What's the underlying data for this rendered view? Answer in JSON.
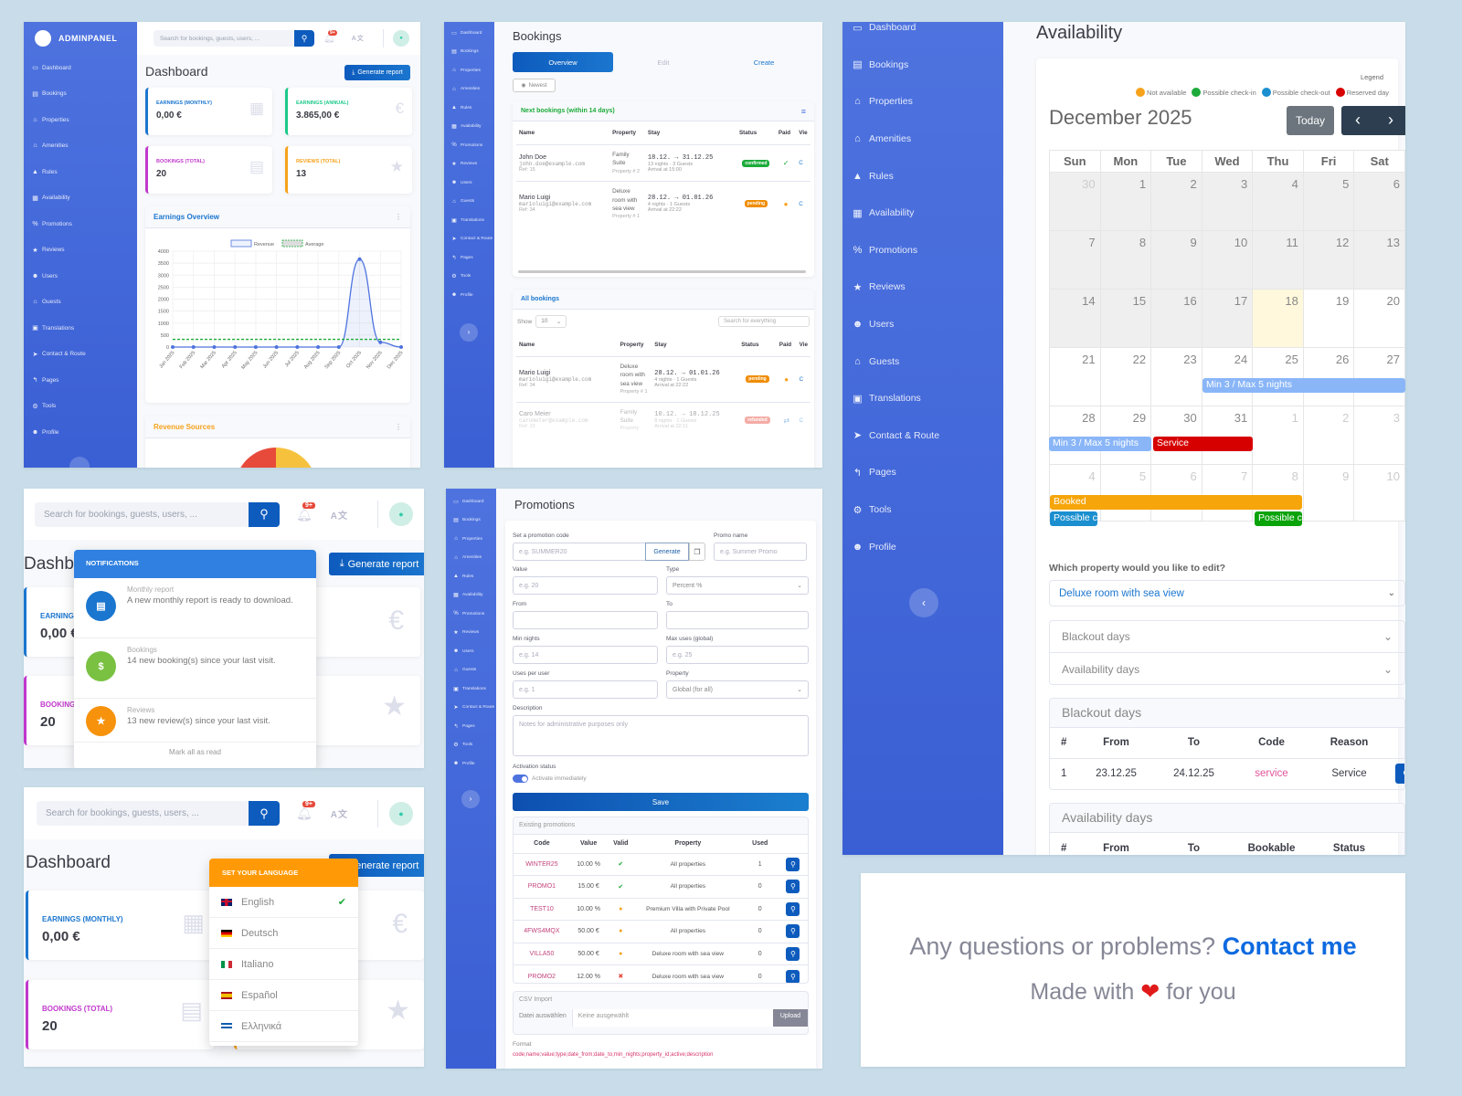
{
  "sidebar": {
    "brand": "ADMINPANEL",
    "items": [
      {
        "label": "Dashboard",
        "icon": "laptop-icon"
      },
      {
        "label": "Bookings",
        "icon": "clipboard-icon"
      },
      {
        "label": "Properties",
        "icon": "home-icon"
      },
      {
        "label": "Amenities",
        "icon": "house-heart-icon"
      },
      {
        "label": "Rules",
        "icon": "warning-icon"
      },
      {
        "label": "Availability",
        "icon": "calendar-icon"
      },
      {
        "label": "Promotions",
        "icon": "percent-icon"
      },
      {
        "label": "Reviews",
        "icon": "star-icon"
      },
      {
        "label": "Users",
        "icon": "users-icon"
      },
      {
        "label": "Guests",
        "icon": "guest-house-icon"
      },
      {
        "label": "Translations",
        "icon": "language-icon"
      },
      {
        "label": "Contact & Route",
        "icon": "location-arrow-icon"
      },
      {
        "label": "Pages",
        "icon": "pages-icon"
      },
      {
        "label": "Tools",
        "icon": "cogs-icon"
      },
      {
        "label": "Profile",
        "icon": "user-cog-icon"
      }
    ],
    "collapse_open": "›",
    "collapse_close": "‹"
  },
  "topbar": {
    "search_placeholder": "Search for bookings, guests, users, ...",
    "notif_badge": "9+",
    "lang_icon": "A文"
  },
  "dashboard": {
    "title": "Dashboard",
    "generate_report": "Generate report",
    "stats": [
      {
        "label": "Earnings (Monthly)",
        "value": "0,00 €",
        "color": "#1b76cf",
        "icon": "calendar-icon"
      },
      {
        "label": "Earnings (Annual)",
        "value": "3.865,00 €",
        "color": "#1cc88a",
        "icon": "euro-icon"
      },
      {
        "label": "Bookings (Total)",
        "value": "20",
        "color": "#c038cc",
        "icon": "clipboard-list-icon"
      },
      {
        "label": "Reviews (Total)",
        "value": "13",
        "color": "#f6a21b",
        "icon": "star-icon"
      }
    ],
    "earnings_title": "Earnings Overview",
    "revenue_sources_title": "Revenue Sources"
  },
  "chart_data": {
    "type": "line",
    "title": "Earnings Overview",
    "categories": [
      "Jan 2025",
      "Feb 2025",
      "Mar 2025",
      "Apr 2025",
      "May 2025",
      "Jun 2025",
      "Jul 2025",
      "Aug 2025",
      "Sep 2025",
      "Oct 2025",
      "Nov 2025",
      "Dec 2025"
    ],
    "series": [
      {
        "name": "Revenue",
        "values": [
          0,
          0,
          0,
          0,
          0,
          0,
          0,
          0,
          0,
          3665,
          200,
          0
        ]
      },
      {
        "name": "Average",
        "values": [
          322,
          322,
          322,
          322,
          322,
          322,
          322,
          322,
          322,
          322,
          322,
          322
        ]
      }
    ],
    "yticks": [
      0,
      500,
      1000,
      1500,
      2000,
      2500,
      3000,
      3500,
      4000
    ],
    "ylim": [
      0,
      4000
    ],
    "legend_position": "top",
    "grid": true
  },
  "bookings": {
    "title": "Bookings",
    "tabs": [
      "Overview",
      "Edit",
      "Create"
    ],
    "newest": "Newest",
    "next_title": "Next bookings (within 14 days)",
    "all_title": "All bookings",
    "columns": [
      "Name",
      "Property",
      "Stay",
      "Status",
      "Paid",
      "Vie"
    ],
    "show_label": "Show",
    "show_value": "10",
    "search_placeholder": "Search for everything",
    "next_rows": [
      {
        "name": "John Doe",
        "email": "john.doe@example.com",
        "ref": "Ref: 15",
        "property": "Family Suite",
        "prop_id": "Property # 2",
        "stay": "18.12. → 31.12.25",
        "nights": "13 nights · 3 Guests",
        "arrival": "Arrival at 15:00",
        "status": "confirmed",
        "status_color": "#1cab3a",
        "paid": "✓",
        "paid_color": "#1cab3a"
      },
      {
        "name": "Mario Luigi",
        "email": "marioluigi@example.com",
        "ref": "Ref: 34",
        "property": "Deluxe room with sea view",
        "prop_id": "Property # 1",
        "stay": "28.12. → 01.01.26",
        "nights": "4 nights · 1 Guests",
        "arrival": "Arrival at 22:22",
        "status": "pending",
        "status_color": "#f08c00",
        "paid": "●",
        "paid_color": "#f6a21b"
      }
    ],
    "all_rows": [
      {
        "name": "Mario Luigi",
        "email": "marioluigi@example.com",
        "ref": "Ref: 34",
        "property": "Deluxe room with sea view",
        "prop_id": "Property # 1",
        "stay": "28.12. → 01.01.26",
        "nights": "4 nights · 1 Guests",
        "arrival": "Arrival at 22:22",
        "status": "pending",
        "status_color": "#f08c00",
        "paid": "●",
        "paid_color": "#f6a21b"
      },
      {
        "name": "Caro Meier",
        "email": "carometer@example.com",
        "ref": "Ref: 33",
        "property": "Family Suite",
        "prop_id": "Property",
        "stay": "10.12. → 18.12.25",
        "nights": "8 nights · 1 Guests",
        "arrival": "Arrival at 22:11",
        "status": "refunded",
        "status_color": "#e74a3b",
        "paid": "⇄",
        "paid_color": "#1b76cf"
      }
    ]
  },
  "availability": {
    "title": "Availability",
    "legend_title": "Legend",
    "legend": [
      {
        "label": "Not available",
        "color": "#f6a21b"
      },
      {
        "label": "Possible check-in",
        "color": "#1cab3a"
      },
      {
        "label": "Possible check-out",
        "color": "#1b8fcf"
      },
      {
        "label": "Reserved day",
        "color": "#d80000"
      }
    ],
    "month": "December 2025",
    "today": "Today",
    "prev": "‹",
    "next": "›",
    "weekdays": [
      "Sun",
      "Mon",
      "Tue",
      "Wed",
      "Thu",
      "Fri",
      "Sat"
    ],
    "weeks": [
      [
        "30",
        "1",
        "2",
        "3",
        "4",
        "5",
        "6"
      ],
      [
        "7",
        "8",
        "9",
        "10",
        "11",
        "12",
        "13"
      ],
      [
        "14",
        "15",
        "16",
        "17",
        "18",
        "19",
        "20"
      ],
      [
        "21",
        "22",
        "23",
        "24",
        "25",
        "26",
        "27"
      ],
      [
        "28",
        "29",
        "30",
        "31",
        "1",
        "2",
        "3"
      ],
      [
        "4",
        "5",
        "6",
        "7",
        "8",
        "9",
        "10"
      ]
    ],
    "events": {
      "minmax1": "Min 3 / Max 5 nights",
      "minmax2": "Min 3 / Max 5 nights",
      "service": "Service",
      "booked": "Booked",
      "checkout": "Possible c",
      "checkin": "Possible c"
    },
    "property_question": "Which property would you like to edit?",
    "property_selected": "Deluxe room with sea view",
    "accordion": [
      "Blackout days",
      "Availability days"
    ],
    "blackout_title": "Blackout days",
    "blackout_columns": [
      "#",
      "From",
      "To",
      "Code",
      "Reason"
    ],
    "blackout_rows": [
      {
        "n": "1",
        "from": "23.12.25",
        "to": "24.12.25",
        "code": "service",
        "reason": "Service"
      }
    ],
    "avail_title": "Availability days",
    "avail_columns": [
      "#",
      "From",
      "To",
      "Bookable",
      "Status"
    ]
  },
  "notifications": {
    "title": "Notifications",
    "items": [
      {
        "title": "Monthly report",
        "text": "A new monthly report is ready to download.",
        "color": "#1b76cf",
        "icon": "file-icon"
      },
      {
        "title": "Bookings",
        "text": "14 new booking(s) since your last visit.",
        "color": "#7ac142",
        "icon": "money-icon"
      },
      {
        "title": "Reviews",
        "text": "13 new review(s) since your last visit.",
        "color": "#f6920c",
        "icon": "star-icon"
      }
    ],
    "mark_all": "Mark all as read"
  },
  "language": {
    "title": "Set your language",
    "options": [
      {
        "label": "English",
        "flag": "uk",
        "selected": true
      },
      {
        "label": "Deutsch",
        "flag": "de",
        "selected": false
      },
      {
        "label": "Italiano",
        "flag": "it",
        "selected": false
      },
      {
        "label": "Español",
        "flag": "es",
        "selected": false
      },
      {
        "label": "Ελληνικά",
        "flag": "gr",
        "selected": false
      }
    ],
    "check": "✔"
  },
  "promotions": {
    "title": "Promotions",
    "code_label": "Set a promotion code",
    "code_placeholder": "e.g. SUMMER20",
    "generate": "Generate",
    "name_label": "Promo name",
    "name_placeholder": "e.g. Summer Promo",
    "value_label": "Value",
    "value_placeholder": "e.g. 20",
    "type_label": "Type",
    "type_value": "Percent %",
    "from_label": "From",
    "to_label": "To",
    "min_nights_label": "Min nights",
    "min_nights_placeholder": "e.g. 14",
    "max_uses_label": "Max uses (global)",
    "max_uses_placeholder": "e.g. 25",
    "uses_user_label": "Uses per user",
    "uses_user_placeholder": "e.g. 1",
    "property_label": "Property",
    "property_value": "Global (for all)",
    "desc_label": "Description",
    "desc_placeholder": "Notes for administrative purposes only",
    "activation_label": "Activation status",
    "activate_text": "Activate immediately",
    "save": "Save",
    "existing_title": "Existing promotions",
    "columns": [
      "Code",
      "Value",
      "Valid",
      "Property",
      "Used"
    ],
    "rows": [
      {
        "code": "WINTER25",
        "value": "10.00 %",
        "valid": "✔",
        "valid_color": "#1cab3a",
        "property": "All properties",
        "used": "1"
      },
      {
        "code": "PROMO1",
        "value": "15.00 €",
        "valid": "✔",
        "valid_color": "#1cab3a",
        "property": "All properties",
        "used": "0"
      },
      {
        "code": "TEST10",
        "value": "10.00 %",
        "valid": "●",
        "valid_color": "#f6a21b",
        "property": "Premium Villa with Private Pool",
        "used": "0"
      },
      {
        "code": "4FWS4MQX",
        "value": "50.00 €",
        "valid": "●",
        "valid_color": "#f6a21b",
        "property": "All properties",
        "used": "0"
      },
      {
        "code": "VILLA50",
        "value": "50.00 €",
        "valid": "●",
        "valid_color": "#f6a21b",
        "property": "Deluxe room with sea view",
        "used": "0"
      },
      {
        "code": "PROMO2",
        "value": "12.00 %",
        "valid": "✖",
        "valid_color": "#e74a3b",
        "property": "Deluxe room with sea view",
        "used": "0"
      }
    ],
    "csv_title": "CSV Import",
    "file_button": "Datei auswählen",
    "file_none": "Keine ausgewählt",
    "upload": "Upload",
    "format_label": "Format",
    "format_value": "code;name;value;type;date_from;date_to;min_nights;property_id;active;description"
  },
  "footer": {
    "question": "Any questions or problems?",
    "contact": "Contact me",
    "made_with": "Made with",
    "heart": "❤",
    "for_you": "for you"
  }
}
